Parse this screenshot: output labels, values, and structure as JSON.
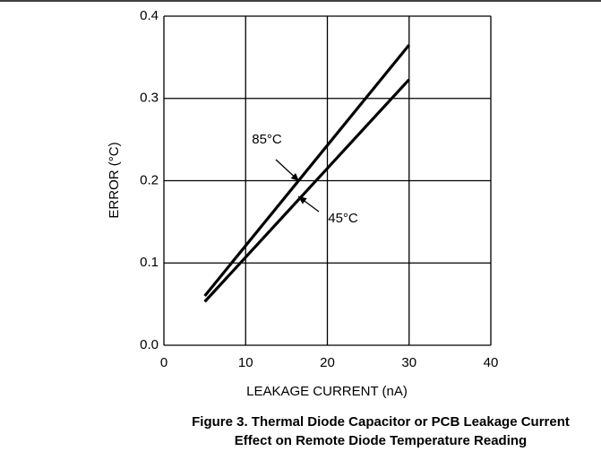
{
  "chart_data": {
    "type": "line",
    "title": [
      "Figure 3. Thermal Diode Capacitor or PCB Leakage Current",
      "Effect on Remote Diode Temperature Reading"
    ],
    "x_label": "LEAKAGE CURRENT (nA)",
    "y_label": "ERROR (°C)",
    "x": [
      5,
      30
    ],
    "series": [
      {
        "name": "85°C",
        "color": "#000000",
        "values": [
          0.06,
          0.365
        ]
      },
      {
        "name": "45°C",
        "color": "#000000",
        "values": [
          0.053,
          0.323
        ]
      }
    ],
    "xlim": [
      0,
      40
    ],
    "xticks": [
      0,
      10,
      20,
      30,
      40
    ],
    "ylim": [
      0,
      0.4
    ],
    "yticks": [
      {
        "value": 0,
        "label": "0.0"
      },
      0.1,
      0.2,
      0.3,
      0.4
    ],
    "grid": true
  }
}
